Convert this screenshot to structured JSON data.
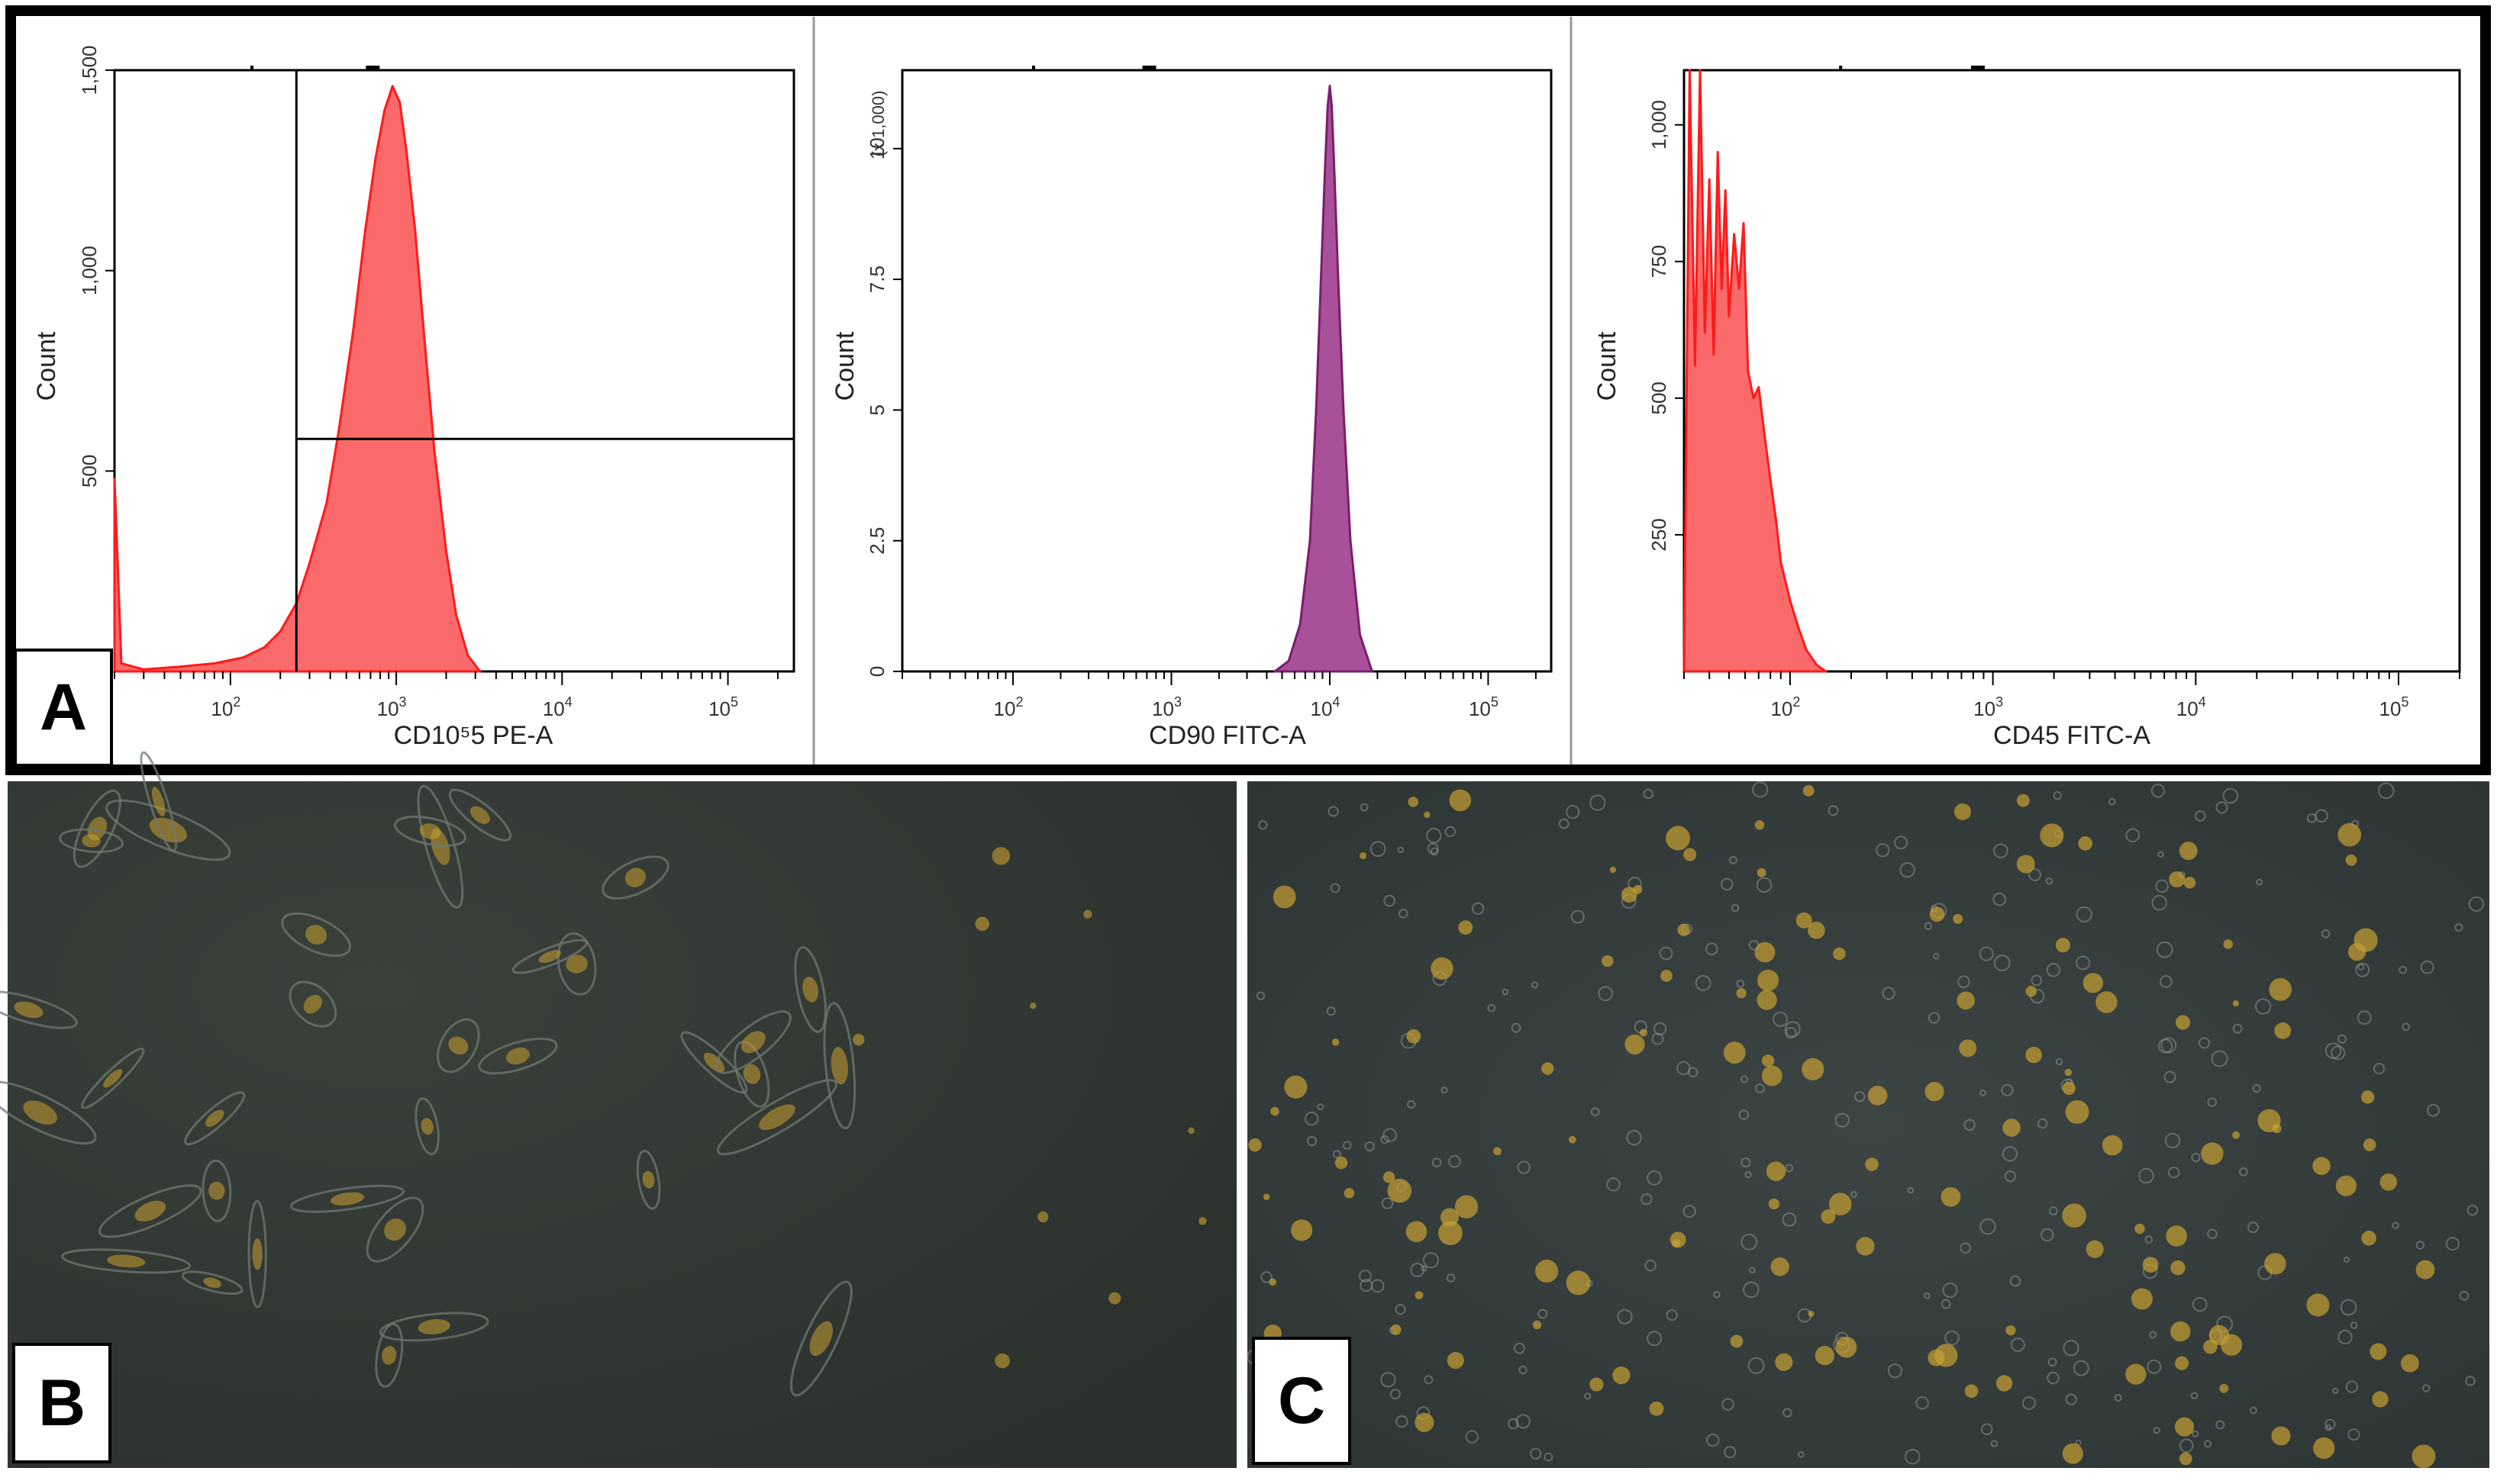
{
  "panels": {
    "a": {
      "label": "A"
    },
    "b": {
      "label": "B"
    },
    "c": {
      "label": "C"
    }
  },
  "colors": {
    "cd105_fill": "#fa6a6a",
    "cd105_line": "#ff1a1a",
    "cd90_fill": "#a8509a",
    "cd90_line": "#7a1e6c",
    "cd45_fill": "#fa6a6a",
    "cd45_line": "#ff1a1a",
    "micrograph_bg": "#2e3430",
    "cell_color": "#c8a030"
  },
  "chart_data": [
    {
      "type": "area",
      "title": "",
      "xlabel": "CD10⁵5 PE-A",
      "ylabel": "Count",
      "x_scale": "log",
      "xlim": [
        20,
        250000
      ],
      "ylim": [
        0,
        1500
      ],
      "xticks": [
        {
          "value": 100,
          "base": "10",
          "exp": "2"
        },
        {
          "value": 1000,
          "base": "10",
          "exp": "3"
        },
        {
          "value": 10000,
          "base": "10",
          "exp": "4"
        },
        {
          "value": 100000,
          "base": "10",
          "exp": "5"
        }
      ],
      "yticks": [
        {
          "value": 500,
          "label": "500"
        },
        {
          "value": 1000,
          "label": "1,000"
        },
        {
          "value": 1500,
          "label": "1,500"
        }
      ],
      "y_multiplier_label": "",
      "gate": {
        "x": 250,
        "y": 580
      },
      "x": [
        20,
        22,
        30,
        50,
        80,
        120,
        160,
        200,
        250,
        300,
        380,
        450,
        550,
        650,
        750,
        850,
        950,
        1050,
        1150,
        1300,
        1500,
        1700,
        2000,
        2300,
        2700,
        3200
      ],
      "values": [
        480,
        20,
        5,
        12,
        20,
        35,
        60,
        100,
        170,
        270,
        420,
        600,
        850,
        1100,
        1280,
        1400,
        1460,
        1420,
        1300,
        1100,
        800,
        550,
        300,
        140,
        40,
        0
      ]
    },
    {
      "type": "area",
      "title": "",
      "xlabel": "CD90 FITC-A",
      "ylabel": "Count",
      "x_scale": "log",
      "xlim": [
        20,
        250000
      ],
      "ylim": [
        0,
        11500
      ],
      "xticks": [
        {
          "value": 100,
          "base": "10",
          "exp": "2"
        },
        {
          "value": 1000,
          "base": "10",
          "exp": "3"
        },
        {
          "value": 10000,
          "base": "10",
          "exp": "4"
        },
        {
          "value": 100000,
          "base": "10",
          "exp": "5"
        }
      ],
      "yticks": [
        {
          "value": 0,
          "label": "0"
        },
        {
          "value": 2500,
          "label": "2.5"
        },
        {
          "value": 5000,
          "label": "5"
        },
        {
          "value": 7500,
          "label": "7.5"
        },
        {
          "value": 10000,
          "label": "10"
        }
      ],
      "y_multiplier_label": "(x 1,000)",
      "x": [
        4500,
        5500,
        6500,
        7500,
        8200,
        8800,
        9300,
        9700,
        10000,
        10300,
        10700,
        11300,
        12200,
        13500,
        15500,
        18500
      ],
      "values": [
        0,
        200,
        900,
        2500,
        5000,
        7500,
        9500,
        10800,
        11200,
        10800,
        9500,
        7500,
        5000,
        2500,
        700,
        0
      ]
    },
    {
      "type": "area",
      "title": "",
      "xlabel": "CD45 FITC-A",
      "ylabel": "Count",
      "x_scale": "log",
      "xlim": [
        30,
        200000
      ],
      "ylim": [
        0,
        1100
      ],
      "xticks": [
        {
          "value": 100,
          "base": "10",
          "exp": "2"
        },
        {
          "value": 1000,
          "base": "10",
          "exp": "3"
        },
        {
          "value": 10000,
          "base": "10",
          "exp": "4"
        },
        {
          "value": 100000,
          "base": "10",
          "exp": "5"
        }
      ],
      "yticks": [
        {
          "value": 250,
          "label": "250"
        },
        {
          "value": 500,
          "label": "500"
        },
        {
          "value": 750,
          "label": "750"
        },
        {
          "value": 1000,
          "label": "1,000"
        }
      ],
      "y_multiplier_label": "",
      "x": [
        30,
        32,
        34,
        36,
        38,
        40,
        42,
        44,
        46,
        48,
        50,
        53,
        56,
        59,
        62,
        66,
        70,
        75,
        80,
        85,
        90,
        100,
        110,
        120,
        135,
        150
      ],
      "values": [
        0,
        1100,
        560,
        1100,
        620,
        900,
        580,
        950,
        700,
        880,
        650,
        800,
        700,
        820,
        550,
        500,
        520,
        430,
        350,
        280,
        200,
        130,
        80,
        40,
        12,
        0
      ]
    }
  ]
}
